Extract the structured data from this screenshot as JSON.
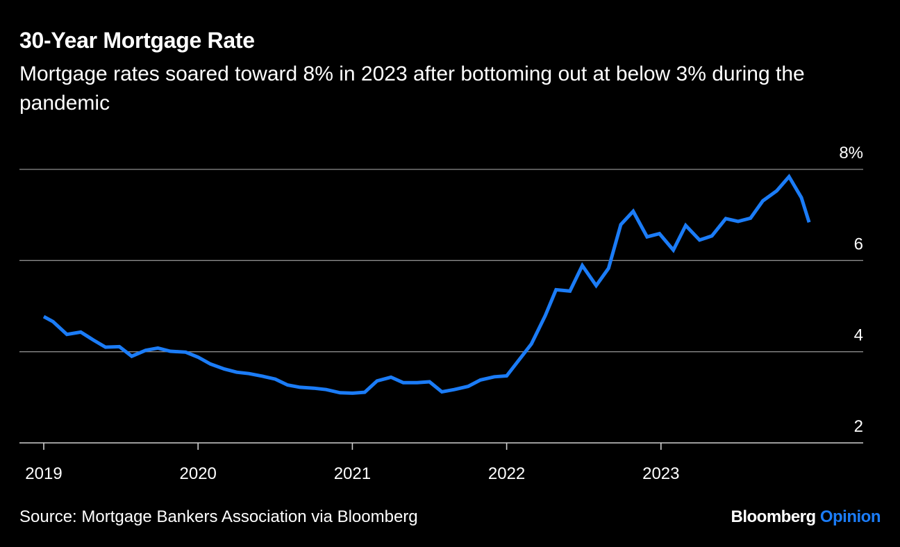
{
  "title": "30-Year Mortgage Rate",
  "subtitle": "Mortgage rates soared toward 8% in 2023 after bottoming out at below 3% during the pandemic",
  "source": "Source: Mortgage Bankers Association via Bloomberg",
  "brand": {
    "name": "Bloomberg",
    "section": "Opinion"
  },
  "colors": {
    "line": "#1b7cf7",
    "grid": "#8c8c8c",
    "brand_accent": "#1b7cf7",
    "background": "#000000"
  },
  "chart_data": {
    "type": "line",
    "title": "30-Year Mortgage Rate",
    "xlabel": "",
    "ylabel": "",
    "ylim": [
      2,
      8
    ],
    "xlim": [
      2019.0,
      2024.0
    ],
    "y_ticks": [
      {
        "value": 8,
        "label": "8%"
      },
      {
        "value": 6,
        "label": "6"
      },
      {
        "value": 4,
        "label": "4"
      },
      {
        "value": 2,
        "label": "2"
      }
    ],
    "x_ticks": [
      {
        "value": 2019,
        "label": "2019"
      },
      {
        "value": 2020,
        "label": "2020"
      },
      {
        "value": 2021,
        "label": "2021"
      },
      {
        "value": 2022,
        "label": "2022"
      },
      {
        "value": 2023,
        "label": "2023"
      }
    ],
    "grid": true,
    "legend": "none",
    "series": [
      {
        "values": [
          [
            2019.0,
            4.77
          ],
          [
            2019.06,
            4.66
          ],
          [
            2019.15,
            4.38
          ],
          [
            2019.24,
            4.43
          ],
          [
            2019.32,
            4.26
          ],
          [
            2019.4,
            4.1
          ],
          [
            2019.49,
            4.11
          ],
          [
            2019.57,
            3.9
          ],
          [
            2019.66,
            4.03
          ],
          [
            2019.74,
            4.08
          ],
          [
            2019.82,
            4.01
          ],
          [
            2019.92,
            3.99
          ],
          [
            2020.0,
            3.88
          ],
          [
            2020.08,
            3.73
          ],
          [
            2020.17,
            3.62
          ],
          [
            2020.25,
            3.55
          ],
          [
            2020.33,
            3.52
          ],
          [
            2020.42,
            3.46
          ],
          [
            2020.5,
            3.4
          ],
          [
            2020.58,
            3.27
          ],
          [
            2020.66,
            3.22
          ],
          [
            2020.75,
            3.2
          ],
          [
            2020.83,
            3.17
          ],
          [
            2020.92,
            3.1
          ],
          [
            2021.0,
            3.09
          ],
          [
            2021.08,
            3.11
          ],
          [
            2021.16,
            3.36
          ],
          [
            2021.25,
            3.44
          ],
          [
            2021.33,
            3.32
          ],
          [
            2021.42,
            3.32
          ],
          [
            2021.5,
            3.34
          ],
          [
            2021.58,
            3.12
          ],
          [
            2021.66,
            3.17
          ],
          [
            2021.75,
            3.24
          ],
          [
            2021.83,
            3.38
          ],
          [
            2021.92,
            3.45
          ],
          [
            2022.0,
            3.47
          ],
          [
            2022.08,
            3.82
          ],
          [
            2022.16,
            4.17
          ],
          [
            2022.25,
            4.79
          ],
          [
            2022.32,
            5.36
          ],
          [
            2022.41,
            5.33
          ],
          [
            2022.49,
            5.89
          ],
          [
            2022.58,
            5.45
          ],
          [
            2022.66,
            5.83
          ],
          [
            2022.74,
            6.79
          ],
          [
            2022.82,
            7.08
          ],
          [
            2022.91,
            6.52
          ],
          [
            2022.99,
            6.59
          ],
          [
            2023.08,
            6.23
          ],
          [
            2023.16,
            6.77
          ],
          [
            2023.25,
            6.45
          ],
          [
            2023.33,
            6.54
          ],
          [
            2023.42,
            6.92
          ],
          [
            2023.5,
            6.86
          ],
          [
            2023.58,
            6.93
          ],
          [
            2023.66,
            7.31
          ],
          [
            2023.75,
            7.53
          ],
          [
            2023.83,
            7.84
          ],
          [
            2023.91,
            7.38
          ],
          [
            2023.96,
            6.84
          ]
        ]
      }
    ]
  }
}
